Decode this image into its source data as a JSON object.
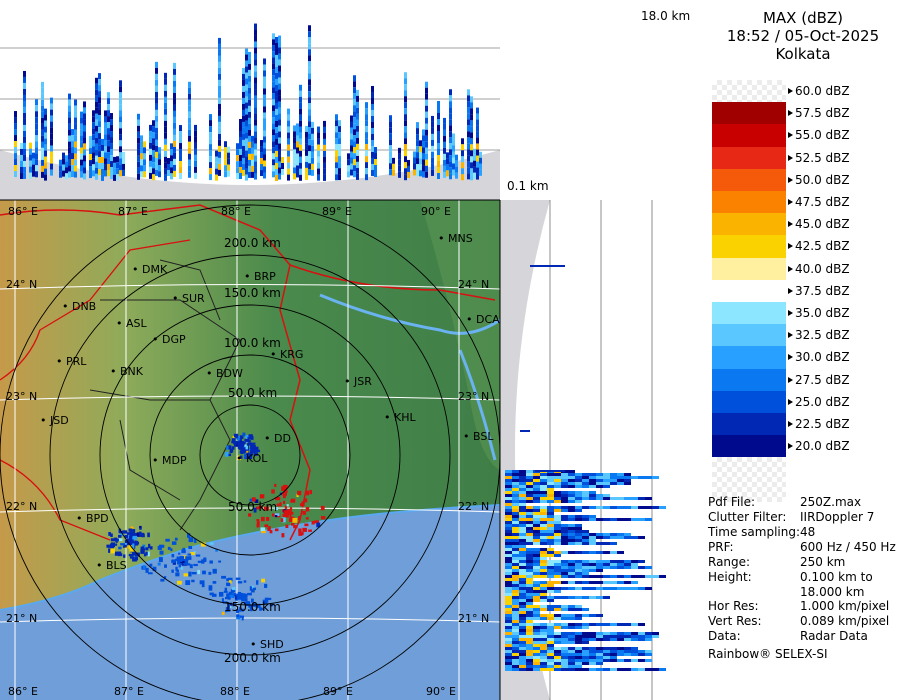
{
  "header": {
    "product": "MAX (dBZ)",
    "datetime": "18:52 / 05-Oct-2025",
    "station": "Kolkata"
  },
  "height_labels": {
    "top": "18.0 km",
    "bottom": "0.1 km"
  },
  "legend": [
    {
      "label": "60.0 dBZ",
      "color": "checker"
    },
    {
      "label": "57.5 dBZ",
      "color": "#a00000"
    },
    {
      "label": "55.0 dBZ",
      "color": "#c80000"
    },
    {
      "label": "52.5 dBZ",
      "color": "#e62814"
    },
    {
      "label": "50.0 dBZ",
      "color": "#f55a0a"
    },
    {
      "label": "47.5 dBZ",
      "color": "#fa8200"
    },
    {
      "label": "45.0 dBZ",
      "color": "#fab400"
    },
    {
      "label": "42.5 dBZ",
      "color": "#fad200"
    },
    {
      "label": "40.0 dBZ",
      "color": "#fff0a0"
    },
    {
      "label": "37.5 dBZ",
      "color": "#ffffff"
    },
    {
      "label": "35.0 dBZ",
      "color": "#8ce6ff"
    },
    {
      "label": "32.5 dBZ",
      "color": "#5ac8ff"
    },
    {
      "label": "30.0 dBZ",
      "color": "#28a0ff"
    },
    {
      "label": "27.5 dBZ",
      "color": "#0a78f0"
    },
    {
      "label": "25.0 dBZ",
      "color": "#0050dc"
    },
    {
      "label": "22.5 dBZ",
      "color": "#0028b4"
    },
    {
      "label": "20.0 dBZ",
      "color": "#000a8c"
    }
  ],
  "info": [
    {
      "key": "Pdf File:",
      "value": "250Z.max"
    },
    {
      "key": "Clutter Filter:",
      "value": "IIRDoppler 7"
    },
    {
      "key": "Time sampling:",
      "value": "48"
    },
    {
      "key": "PRF:",
      "value": "600 Hz / 450 Hz"
    },
    {
      "key": "Range:",
      "value": "250 km"
    },
    {
      "key": "Height:",
      "value": "0.100 km to"
    },
    {
      "key": "",
      "value": "18.000 km"
    },
    {
      "key": "Hor Res:",
      "value": "1.000 km/pixel"
    },
    {
      "key": "Vert Res:",
      "value": "0.089 km/pixel"
    },
    {
      "key": "Data:",
      "value": "Radar Data"
    }
  ],
  "footer": "Rainbow® SELEX-SI",
  "map": {
    "lon_labels": [
      "86° E",
      "87° E",
      "88° E",
      "89° E",
      "90° E"
    ],
    "lat_labels": [
      "24° N",
      "23° N",
      "22° N",
      "21° N"
    ],
    "range_rings": [
      "50.0 km",
      "100.0 km",
      "150.0 km",
      "200.0 km"
    ],
    "cities": [
      "MNS",
      "DMK",
      "BRP",
      "DNB",
      "SUR",
      "ASL",
      "DCA",
      "DGP",
      "KRG",
      "PRL",
      "BNK",
      "BDW",
      "JSR",
      "KHL",
      "JSD",
      "DD",
      "BSL",
      "MDP",
      "KOL",
      "BPD",
      "BLS",
      "SHD"
    ]
  }
}
